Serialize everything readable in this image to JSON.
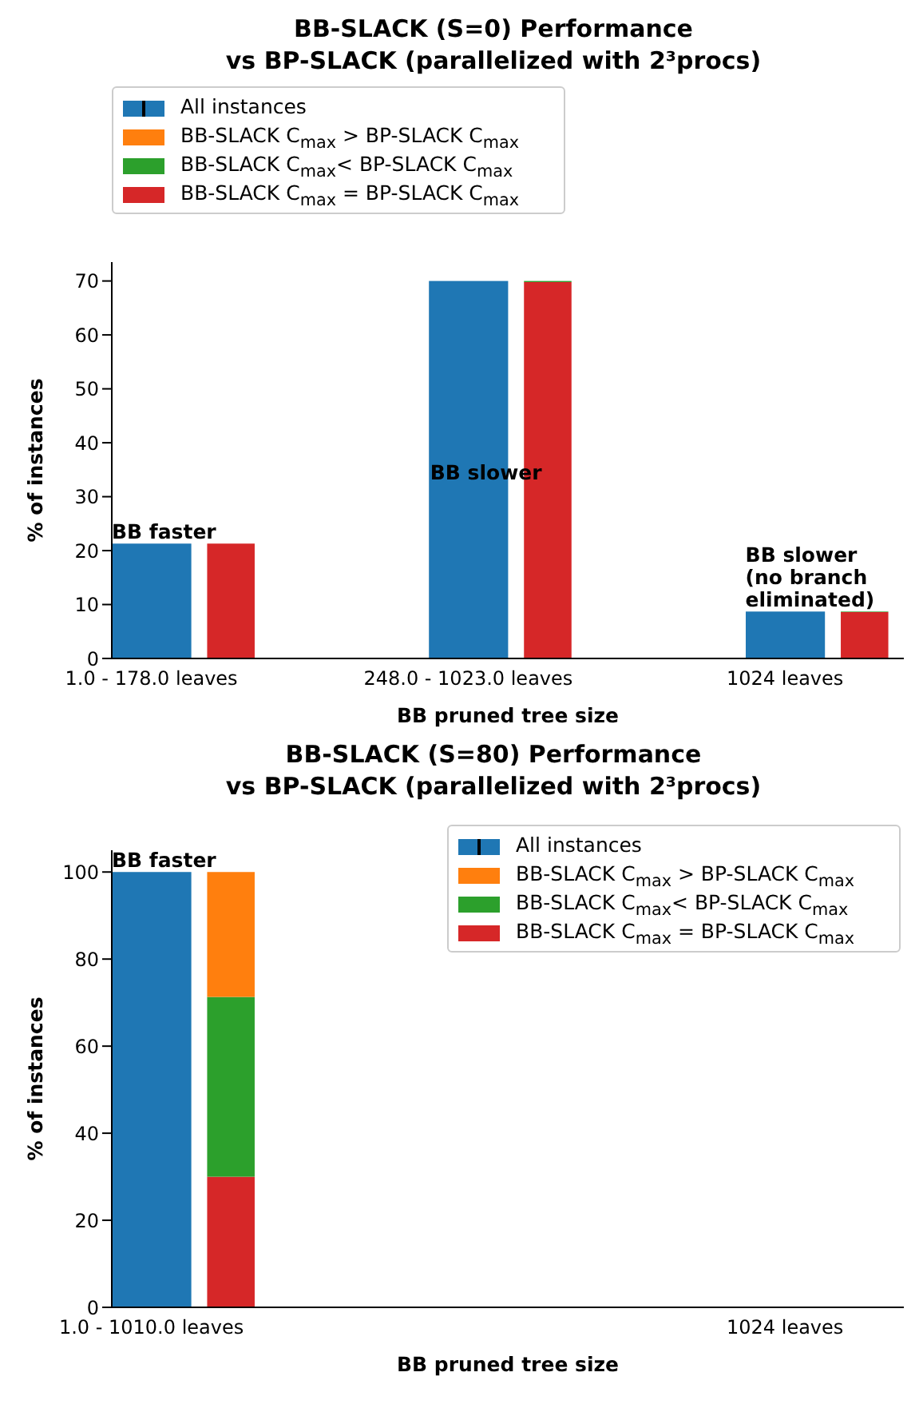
{
  "chart_data": [
    {
      "type": "bar",
      "title": "BB-SLACK (S=0) Performance\nvs BP-SLACK (parallelized with 2³procs)",
      "xlabel": "BB pruned tree size",
      "ylabel": "% of instances",
      "categories": [
        "1.0 - 178.0 leaves",
        null,
        null,
        null,
        "248.0 - 1023.0 leaves",
        null,
        null,
        null,
        "1024 leaves",
        null
      ],
      "stacked": true,
      "legend": "top left",
      "ylim": [
        0,
        73.5
      ],
      "yticks": [
        0,
        10,
        20,
        30,
        40,
        50,
        60,
        70
      ],
      "series": [
        {
          "name": "All instances",
          "color": "#1f77b4",
          "values": [
            21.3,
            null,
            null,
            null,
            70,
            null,
            null,
            null,
            8.7,
            null
          ]
        },
        {
          "name": "BB-SLACK C$_{max}$ = BP-SLACK C$_{max}$",
          "color": "#d62728",
          "values": [
            null,
            21.3,
            null,
            null,
            null,
            69.8,
            null,
            null,
            null,
            8.6
          ]
        },
        {
          "name": "BB-SLACK C$_{max}$< BP-SLACK C$_{max}$",
          "color": "#2ca02c",
          "values": [
            null,
            0,
            null,
            null,
            null,
            0.2,
            null,
            null,
            null,
            0.1
          ]
        },
        {
          "name": "BB-SLACK C$_{max}$ > BP-SLACK C$_{max}$",
          "color": "#ff7f0e",
          "values": [
            null,
            0,
            null,
            null,
            null,
            0,
            null,
            null,
            null,
            0
          ]
        }
      ],
      "annotations": [
        {
          "text": "BB faster",
          "x": "1.0 - 178.0 leaves",
          "y": 21.3
        },
        "BB slower",
        {
          "text": "BB slower\n(no branch\neliminated)",
          "x": "1024 leaves",
          "y": 8.7
        }
      ]
    },
    {
      "type": "bar",
      "title": "BB-SLACK (S=80) Performance\nvs BP-SLACK (parallelized with 2³procs)",
      "xlabel": "BB pruned tree size",
      "ylabel": "% of instances",
      "categories": [
        "1.0 - 1010.0 leaves",
        null,
        null,
        null,
        null,
        null,
        null,
        null,
        "1024 leaves",
        null
      ],
      "stacked": true,
      "legend": "top right",
      "ylim": [
        0,
        105
      ],
      "yticks": [
        0,
        20,
        40,
        60,
        80,
        100
      ],
      "series": [
        {
          "name": "All instances",
          "color": "#1f77b4",
          "values": [
            100,
            null,
            null,
            null,
            null,
            null,
            null,
            null,
            null,
            null
          ]
        },
        {
          "name": "BB-SLACK C$_{max}$ = BP-SLACK C$_{max}$",
          "color": "#d62728",
          "values": [
            null,
            30,
            null,
            null,
            null,
            null,
            null,
            null,
            null,
            null
          ]
        },
        {
          "name": "BB-SLACK C$_{max}$< BP-SLACK C$_{max}$",
          "color": "#2ca02c",
          "values": [
            null,
            41.3,
            null,
            null,
            null,
            null,
            null,
            null,
            null,
            null
          ]
        },
        {
          "name": "BB-SLACK C$_{max}$ > BP-SLACK C$_{max}$",
          "color": "#ff7f0e",
          "values": [
            null,
            28.7,
            null,
            null,
            null,
            null,
            null,
            null,
            null,
            null
          ]
        }
      ],
      "annotations": [
        {
          "text": "BB faster",
          "x": "1.0 - 1010.0 leaves",
          "y": 100
        }
      ]
    }
  ]
}
